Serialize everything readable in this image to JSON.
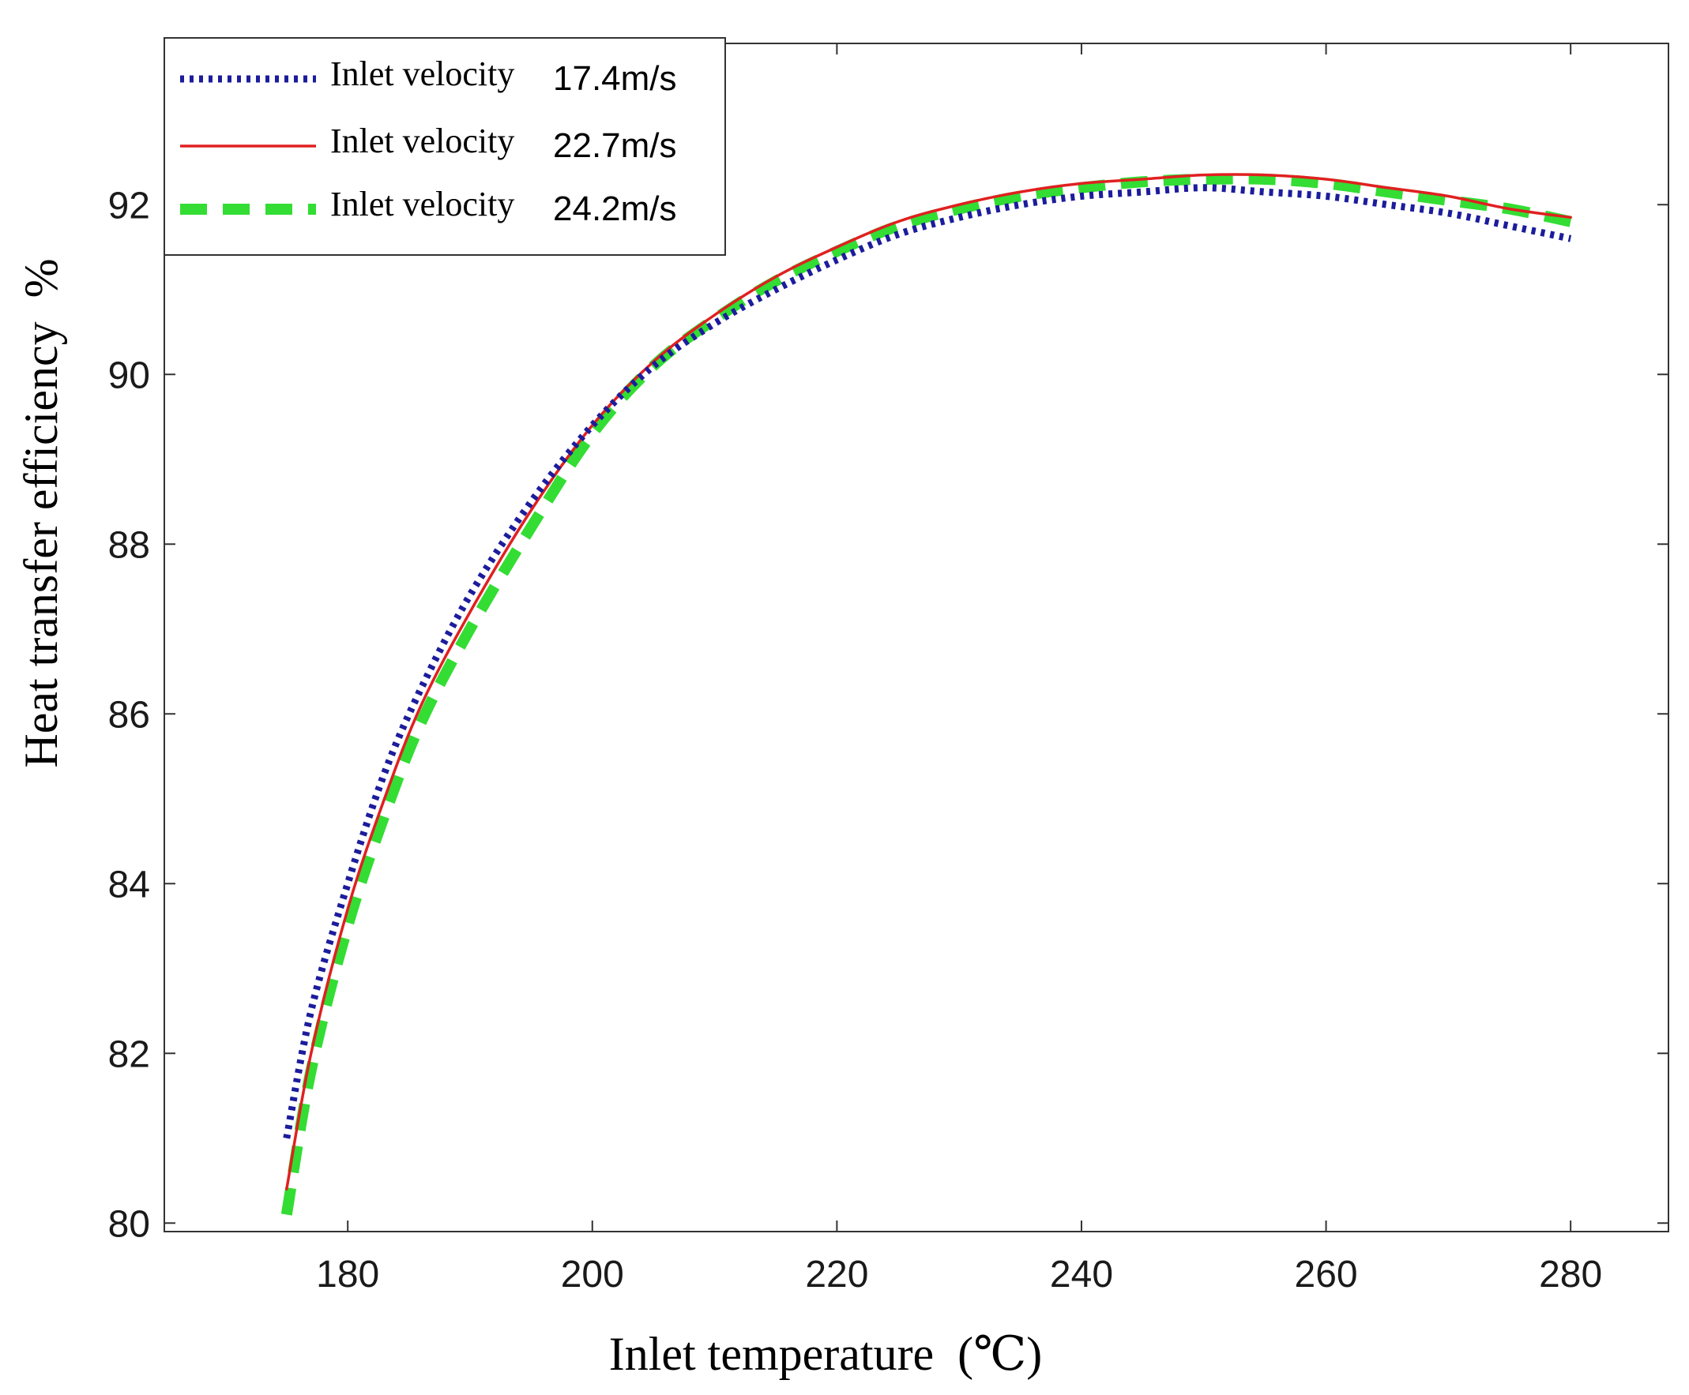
{
  "chart_data": {
    "type": "line",
    "title": "",
    "xlabel": "Inlet temperature  (℃)",
    "ylabel": "Heat transfer efficiency  %",
    "xlim": [
      165,
      288
    ],
    "ylim": [
      79.9,
      93.9
    ],
    "xticks": [
      180,
      200,
      220,
      240,
      260,
      280
    ],
    "yticks": [
      80,
      82,
      84,
      86,
      88,
      90,
      92
    ],
    "xtick_labels": [
      "180",
      "200",
      "220",
      "240",
      "260",
      "280"
    ],
    "ytick_labels": [
      "80",
      "82",
      "84",
      "86",
      "88",
      "90",
      "92"
    ],
    "grid": false,
    "legend_position": "top-left",
    "x": [
      175,
      177,
      180,
      183,
      186,
      190,
      195,
      200,
      205,
      210,
      215,
      220,
      225,
      230,
      235,
      240,
      245,
      250,
      255,
      260,
      265,
      270,
      275,
      280
    ],
    "series": [
      {
        "name": "Inlet velocity 17.4m/s",
        "label_prefix": "Inlet velocity",
        "label_value": "17.4m/s",
        "color": "#1c1c9c",
        "style": "dotted",
        "values": [
          81.0,
          82.5,
          84.0,
          85.3,
          86.3,
          87.4,
          88.5,
          89.4,
          90.1,
          90.6,
          91.0,
          91.35,
          91.65,
          91.85,
          92.0,
          92.1,
          92.15,
          92.2,
          92.15,
          92.1,
          92.0,
          91.9,
          91.75,
          91.6
        ]
      },
      {
        "name": "Inlet velocity 22.7m/s",
        "label_prefix": "Inlet velocity",
        "label_value": "22.7m/s",
        "color": "#e02020",
        "style": "solid",
        "values": [
          80.4,
          82.0,
          83.7,
          85.0,
          86.1,
          87.2,
          88.4,
          89.4,
          90.15,
          90.7,
          91.15,
          91.5,
          91.8,
          92.0,
          92.15,
          92.25,
          92.3,
          92.35,
          92.35,
          92.3,
          92.2,
          92.1,
          91.95,
          91.85
        ]
      },
      {
        "name": "Inlet velocity 24.2m/s",
        "label_prefix": "Inlet velocity",
        "label_value": "24.2m/s",
        "color": "#33dd33",
        "style": "dashed",
        "values": [
          80.1,
          81.8,
          83.5,
          84.8,
          85.9,
          87.0,
          88.2,
          89.3,
          90.1,
          90.65,
          91.1,
          91.45,
          91.75,
          91.95,
          92.1,
          92.2,
          92.27,
          92.3,
          92.3,
          92.25,
          92.15,
          92.05,
          91.95,
          91.8
        ]
      }
    ]
  }
}
